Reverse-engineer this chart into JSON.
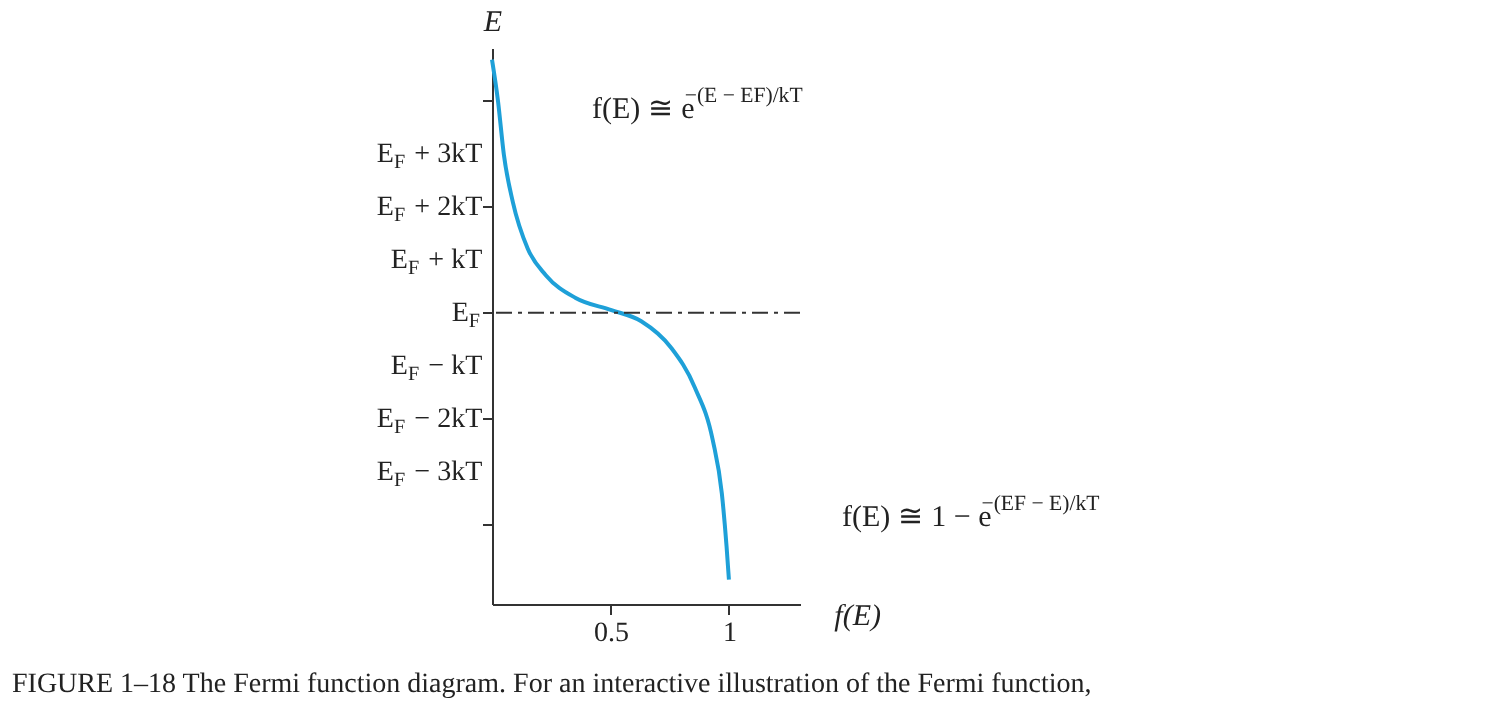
{
  "chart_data": {
    "type": "line",
    "xlabel": "f(E)",
    "ylabel": "E",
    "x": [
      0.0,
      0.025,
      0.05,
      0.088,
      0.151,
      0.227,
      0.353,
      0.504,
      0.63,
      0.756,
      0.856,
      0.932,
      0.97,
      0.99,
      1.0
    ],
    "series": [
      {
        "color": "#1ea0d8",
        "values": [
          4.78,
          4.01,
          2.99,
          2.09,
          1.21,
          0.71,
          0.28,
          0.05,
          -0.16,
          -0.66,
          -1.41,
          -2.41,
          -3.41,
          -4.41,
          -5.04
        ]
      }
    ],
    "xlim": [
      0,
      1.3
    ],
    "ylim": [
      -5.5,
      5
    ],
    "xticks": [
      {
        "value": 0.5,
        "label": "0.5"
      },
      1
    ],
    "yticks": [
      {
        "value": 4,
        "label": null
      },
      {
        "value": 3,
        "label": "E$_{F}$ + 3kT"
      },
      {
        "value": 2,
        "label": "E$_{F}$ + 2kT"
      },
      {
        "value": 1,
        "label": "E$_{F}$ + kT"
      },
      {
        "value": 0,
        "label": "E$_{F}$"
      },
      {
        "value": -1,
        "label": "E$_{F}$ − kT"
      },
      {
        "value": -2,
        "label": "E$_{F}$ − 2kT"
      },
      {
        "value": -3,
        "label": "E$_{F}$ − 3kT"
      },
      {
        "value": -4,
        "label": null
      }
    ],
    "ref_lines": [
      {
        "axis": "y",
        "value": 0,
        "line_style": "dashdot",
        "color": "#333333"
      }
    ],
    "annotations": [
      "f(E) ≅ e$^{−(E − EF)/kT}$",
      "f(E) ≅ 1 − e$^{−(EF − E)/kT}$",
      "FIGURE 1–18 The Fermi function diagram. For an interactive illustration of the Fermi function,"
    ],
    "grid": false,
    "marker": "none",
    "line_style": "solid"
  }
}
